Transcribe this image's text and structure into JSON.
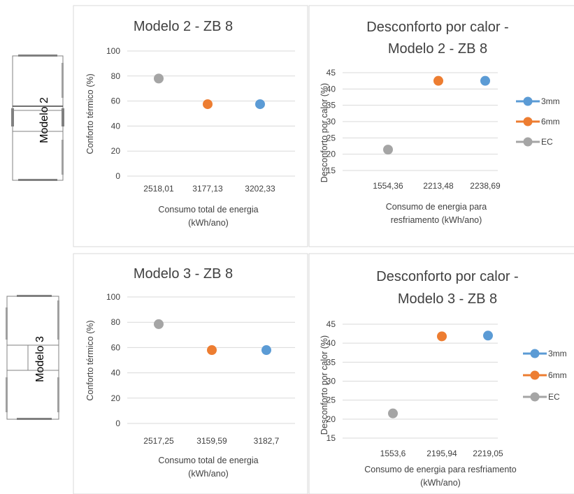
{
  "models": [
    {
      "label": "Modelo 2"
    },
    {
      "label": "Modelo 3"
    }
  ],
  "colors": {
    "3mm": "#5b9bd5",
    "6mm": "#ed7d31",
    "EC": "#a5a5a5",
    "grid": "#d9d9d9"
  },
  "chart_data": [
    {
      "type": "scatter",
      "title": "Modelo 2 - ZB 8",
      "xlabel": "Consumo total de energia (kWh/ano)",
      "ylabel": "Conforto térmico (%)",
      "categories": [
        "2518,01",
        "3177,13",
        "3202,33"
      ],
      "ylim": [
        0,
        100
      ],
      "yticks": [
        "0",
        "20",
        "40",
        "60",
        "80",
        "100"
      ],
      "grid": true,
      "points": [
        {
          "x": "2518,01",
          "y": 78,
          "series": "EC"
        },
        {
          "x": "3177,13",
          "y": 57.5,
          "series": "6mm"
        },
        {
          "x": "3202,33",
          "y": 57.5,
          "series": "3mm"
        }
      ]
    },
    {
      "type": "scatter",
      "title": "Desconforto por calor - Modelo 2 - ZB 8",
      "xlabel": "Consumo de energia para resfriamento (kWh/ano)",
      "ylabel": "Desconforto por calor (%)",
      "categories": [
        "1554,36",
        "2213,48",
        "2238,69"
      ],
      "ylim": [
        15,
        45
      ],
      "yticks": [
        "15",
        "20",
        "25",
        "30",
        "35",
        "40",
        "45"
      ],
      "grid": true,
      "legend": [
        "3mm",
        "6mm",
        "EC"
      ],
      "points": [
        {
          "x": "1554,36",
          "y": 21.4,
          "series": "EC"
        },
        {
          "x": "2213,48",
          "y": 42.5,
          "series": "6mm"
        },
        {
          "x": "2238,69",
          "y": 42.5,
          "series": "3mm"
        }
      ]
    },
    {
      "type": "scatter",
      "title": "Modelo 3 - ZB 8",
      "xlabel": "Consumo total de energia (kWh/ano)",
      "ylabel": "Conforto térmico (%)",
      "categories": [
        "2517,25",
        "3159,59",
        "3182,7"
      ],
      "ylim": [
        0,
        100
      ],
      "yticks": [
        "0",
        "20",
        "40",
        "60",
        "80",
        "100"
      ],
      "grid": true,
      "points": [
        {
          "x": "2517,25",
          "y": 78.5,
          "series": "EC"
        },
        {
          "x": "3159,59",
          "y": 58,
          "series": "6mm"
        },
        {
          "x": "3182,7",
          "y": 58,
          "series": "3mm"
        }
      ]
    },
    {
      "type": "scatter",
      "title": "Desconforto por calor - Modelo 3 - ZB 8",
      "xlabel": "Consumo de energia para resfriamento (kWh/ano)",
      "ylabel": "Desconforto por calor (%)",
      "categories": [
        "1553,6",
        "2195,94",
        "2219,05"
      ],
      "ylim": [
        15,
        45
      ],
      "yticks": [
        "15",
        "20",
        "25",
        "30",
        "35",
        "40",
        "45"
      ],
      "grid": true,
      "legend": [
        "3mm",
        "6mm",
        "EC"
      ],
      "points": [
        {
          "x": "1553,6",
          "y": 21.5,
          "series": "EC"
        },
        {
          "x": "2195,94",
          "y": 41.8,
          "series": "6mm"
        },
        {
          "x": "2219,05",
          "y": 42,
          "series": "3mm"
        }
      ]
    }
  ]
}
